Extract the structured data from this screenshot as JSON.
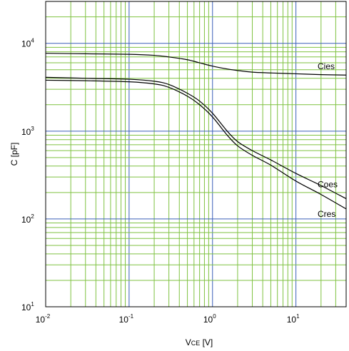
{
  "chart_data": {
    "type": "line",
    "title": "",
    "xlabel": {
      "main": "V",
      "sub": "CE",
      "unit": " [V]"
    },
    "ylabel": "C [pF]",
    "xscale": "log",
    "yscale": "log",
    "xlim": [
      0.01,
      40
    ],
    "ylim": [
      10,
      30000
    ],
    "grid": true,
    "x_ticks": [
      {
        "base": "10",
        "exp": "-2",
        "value": 0.01
      },
      {
        "base": "10",
        "exp": "-1",
        "value": 0.1
      },
      {
        "base": "10",
        "exp": "0",
        "value": 1
      },
      {
        "base": "10",
        "exp": "1",
        "value": 10
      }
    ],
    "y_ticks": [
      {
        "base": "10",
        "exp": "1",
        "value": 10
      },
      {
        "base": "10",
        "exp": "2",
        "value": 100
      },
      {
        "base": "10",
        "exp": "3",
        "value": 1000
      },
      {
        "base": "10",
        "exp": "4",
        "value": 10000
      }
    ],
    "series": [
      {
        "name": "Cies",
        "x": [
          0.01,
          0.03,
          0.1,
          0.2,
          0.3,
          0.5,
          0.7,
          1,
          1.5,
          2,
          3,
          5,
          10,
          20,
          40
        ],
        "values": [
          7700,
          7600,
          7500,
          7300,
          7000,
          6500,
          6000,
          5500,
          5100,
          4900,
          4700,
          4600,
          4500,
          4400,
          4350
        ]
      },
      {
        "name": "Coes",
        "x": [
          0.01,
          0.03,
          0.1,
          0.2,
          0.3,
          0.5,
          0.7,
          1,
          1.5,
          2,
          3,
          5,
          10,
          20,
          40
        ],
        "values": [
          4100,
          4000,
          3900,
          3700,
          3400,
          2700,
          2200,
          1600,
          1000,
          760,
          600,
          470,
          330,
          240,
          170
        ]
      },
      {
        "name": "Cres",
        "x": [
          0.01,
          0.03,
          0.1,
          0.2,
          0.3,
          0.5,
          0.7,
          1,
          1.5,
          2,
          3,
          5,
          10,
          20,
          40
        ],
        "values": [
          3800,
          3750,
          3650,
          3450,
          3150,
          2500,
          2000,
          1450,
          900,
          680,
          530,
          410,
          270,
          190,
          130
        ]
      }
    ]
  }
}
